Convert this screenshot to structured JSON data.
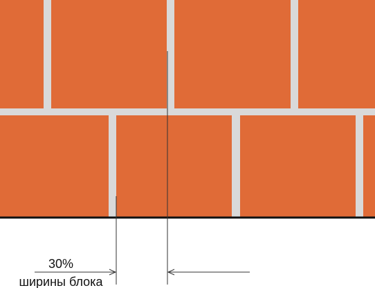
{
  "colors": {
    "block": "#E06B37",
    "mortar": "#D9D9D9",
    "base_line": "#111111",
    "dimension_line": "#333333"
  },
  "annotation": {
    "percent": "30%",
    "caption": "ширины блока"
  }
}
